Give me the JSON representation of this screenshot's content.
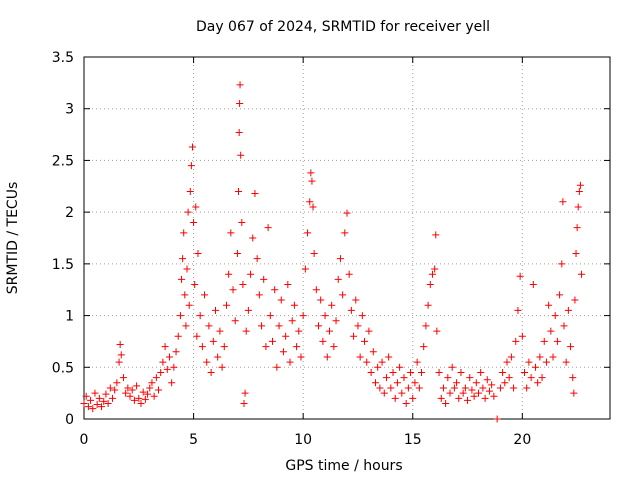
{
  "chart_data": {
    "type": "scatter",
    "title": "Day 067 of 2024, SRMTID for receiver yell",
    "xlabel": "GPS time / hours",
    "ylabel": "SRMTID / TECUs",
    "xlim": [
      0,
      24
    ],
    "ylim": [
      0,
      3.5
    ],
    "x_ticks": [
      0,
      5,
      10,
      15,
      20
    ],
    "x_tick_labels": [
      "0",
      "5",
      "10",
      "15",
      "20"
    ],
    "y_ticks": [
      0,
      0.5,
      1,
      1.5,
      2,
      2.5,
      3,
      3.5
    ],
    "y_tick_labels": [
      "0",
      "0.5",
      "1",
      "1.5",
      "2",
      "2.5",
      "3",
      "3.5"
    ],
    "grid": true,
    "marker": "+",
    "color": "#ff0000",
    "series": [
      {
        "name": "SRMTID",
        "points": [
          [
            0.0,
            0.15
          ],
          [
            0.1,
            0.22
          ],
          [
            0.2,
            0.12
          ],
          [
            0.3,
            0.18
          ],
          [
            0.4,
            0.1
          ],
          [
            0.5,
            0.25
          ],
          [
            0.6,
            0.14
          ],
          [
            0.7,
            0.2
          ],
          [
            0.8,
            0.12
          ],
          [
            0.9,
            0.17
          ],
          [
            1.0,
            0.24
          ],
          [
            1.1,
            0.15
          ],
          [
            1.2,
            0.3
          ],
          [
            1.3,
            0.2
          ],
          [
            1.4,
            0.28
          ],
          [
            1.5,
            0.35
          ],
          [
            1.6,
            0.55
          ],
          [
            1.65,
            0.72
          ],
          [
            1.7,
            0.62
          ],
          [
            1.8,
            0.4
          ],
          [
            1.9,
            0.25
          ],
          [
            2.0,
            0.3
          ],
          [
            2.1,
            0.22
          ],
          [
            2.2,
            0.28
          ],
          [
            2.3,
            0.18
          ],
          [
            2.4,
            0.32
          ],
          [
            2.5,
            0.2
          ],
          [
            2.6,
            0.15
          ],
          [
            2.7,
            0.26
          ],
          [
            2.8,
            0.19
          ],
          [
            2.9,
            0.24
          ],
          [
            3.0,
            0.3
          ],
          [
            3.1,
            0.35
          ],
          [
            3.2,
            0.22
          ],
          [
            3.3,
            0.4
          ],
          [
            3.4,
            0.28
          ],
          [
            3.5,
            0.45
          ],
          [
            3.6,
            0.55
          ],
          [
            3.7,
            0.7
          ],
          [
            3.8,
            0.48
          ],
          [
            3.9,
            0.6
          ],
          [
            4.0,
            0.35
          ],
          [
            4.1,
            0.5
          ],
          [
            4.2,
            0.65
          ],
          [
            4.3,
            0.8
          ],
          [
            4.4,
            1.0
          ],
          [
            4.45,
            1.35
          ],
          [
            4.5,
            1.55
          ],
          [
            4.55,
            1.8
          ],
          [
            4.6,
            1.2
          ],
          [
            4.65,
            0.9
          ],
          [
            4.7,
            1.45
          ],
          [
            4.75,
            2.0
          ],
          [
            4.8,
            1.1
          ],
          [
            4.85,
            2.2
          ],
          [
            4.9,
            2.45
          ],
          [
            4.95,
            2.63
          ],
          [
            5.0,
            1.9
          ],
          [
            5.05,
            1.3
          ],
          [
            5.1,
            2.05
          ],
          [
            5.15,
            0.8
          ],
          [
            5.2,
            1.6
          ],
          [
            5.3,
            1.0
          ],
          [
            5.4,
            0.7
          ],
          [
            5.5,
            1.2
          ],
          [
            5.6,
            0.55
          ],
          [
            5.7,
            0.9
          ],
          [
            5.8,
            0.45
          ],
          [
            5.9,
            0.75
          ],
          [
            6.0,
            1.05
          ],
          [
            6.1,
            0.6
          ],
          [
            6.2,
            0.85
          ],
          [
            6.3,
            0.5
          ],
          [
            6.4,
            0.7
          ],
          [
            6.5,
            1.1
          ],
          [
            6.6,
            1.4
          ],
          [
            6.7,
            1.8
          ],
          [
            6.8,
            1.25
          ],
          [
            6.9,
            0.95
          ],
          [
            7.0,
            1.6
          ],
          [
            7.05,
            2.2
          ],
          [
            7.08,
            2.77
          ],
          [
            7.1,
            3.05
          ],
          [
            7.12,
            3.23
          ],
          [
            7.15,
            2.55
          ],
          [
            7.2,
            1.9
          ],
          [
            7.25,
            1.3
          ],
          [
            7.3,
            0.15
          ],
          [
            7.35,
            0.25
          ],
          [
            7.4,
            0.85
          ],
          [
            7.5,
            1.05
          ],
          [
            7.6,
            1.4
          ],
          [
            7.7,
            1.75
          ],
          [
            7.8,
            2.18
          ],
          [
            7.9,
            1.55
          ],
          [
            8.0,
            1.2
          ],
          [
            8.1,
            0.9
          ],
          [
            8.2,
            1.35
          ],
          [
            8.3,
            0.7
          ],
          [
            8.4,
            1.85
          ],
          [
            8.5,
            1.0
          ],
          [
            8.6,
            0.75
          ],
          [
            8.7,
            1.25
          ],
          [
            8.8,
            0.5
          ],
          [
            8.9,
            0.9
          ],
          [
            9.0,
            1.15
          ],
          [
            9.1,
            0.65
          ],
          [
            9.2,
            0.8
          ],
          [
            9.3,
            1.3
          ],
          [
            9.4,
            0.55
          ],
          [
            9.5,
            0.95
          ],
          [
            9.6,
            1.1
          ],
          [
            9.7,
            0.7
          ],
          [
            9.8,
            0.85
          ],
          [
            9.9,
            0.6
          ],
          [
            10.0,
            1.0
          ],
          [
            10.1,
            1.45
          ],
          [
            10.2,
            1.8
          ],
          [
            10.3,
            2.1
          ],
          [
            10.35,
            2.38
          ],
          [
            10.4,
            2.3
          ],
          [
            10.45,
            2.05
          ],
          [
            10.5,
            1.6
          ],
          [
            10.6,
            1.25
          ],
          [
            10.7,
            0.9
          ],
          [
            10.8,
            1.15
          ],
          [
            10.9,
            0.75
          ],
          [
            11.0,
            1.0
          ],
          [
            11.1,
            0.6
          ],
          [
            11.2,
            0.85
          ],
          [
            11.3,
            1.1
          ],
          [
            11.4,
            0.7
          ],
          [
            11.5,
            0.95
          ],
          [
            11.6,
            1.35
          ],
          [
            11.7,
            1.55
          ],
          [
            11.8,
            1.2
          ],
          [
            11.9,
            1.8
          ],
          [
            12.0,
            1.99
          ],
          [
            12.1,
            1.4
          ],
          [
            12.2,
            1.05
          ],
          [
            12.3,
            0.8
          ],
          [
            12.4,
            1.15
          ],
          [
            12.5,
            0.9
          ],
          [
            12.6,
            0.6
          ],
          [
            12.7,
            1.0
          ],
          [
            12.8,
            0.75
          ],
          [
            12.9,
            0.55
          ],
          [
            13.0,
            0.85
          ],
          [
            13.1,
            0.45
          ],
          [
            13.2,
            0.65
          ],
          [
            13.3,
            0.35
          ],
          [
            13.4,
            0.5
          ],
          [
            13.5,
            0.3
          ],
          [
            13.6,
            0.55
          ],
          [
            13.7,
            0.25
          ],
          [
            13.8,
            0.4
          ],
          [
            13.9,
            0.6
          ],
          [
            14.0,
            0.3
          ],
          [
            14.1,
            0.45
          ],
          [
            14.2,
            0.2
          ],
          [
            14.3,
            0.35
          ],
          [
            14.4,
            0.5
          ],
          [
            14.5,
            0.25
          ],
          [
            14.6,
            0.4
          ],
          [
            14.7,
            0.15
          ],
          [
            14.8,
            0.3
          ],
          [
            14.9,
            0.45
          ],
          [
            15.0,
            0.2
          ],
          [
            15.1,
            0.35
          ],
          [
            15.2,
            0.55
          ],
          [
            15.3,
            0.3
          ],
          [
            15.4,
            0.45
          ],
          [
            15.5,
            0.7
          ],
          [
            15.6,
            0.9
          ],
          [
            15.7,
            1.1
          ],
          [
            15.8,
            1.3
          ],
          [
            15.9,
            1.4
          ],
          [
            16.0,
            1.45
          ],
          [
            16.05,
            1.78
          ],
          [
            16.1,
            0.85
          ],
          [
            16.2,
            0.45
          ],
          [
            16.3,
            0.2
          ],
          [
            16.4,
            0.3
          ],
          [
            16.5,
            0.15
          ],
          [
            16.6,
            0.4
          ],
          [
            16.7,
            0.25
          ],
          [
            16.8,
            0.5
          ],
          [
            16.9,
            0.3
          ],
          [
            17.0,
            0.35
          ],
          [
            17.1,
            0.2
          ],
          [
            17.2,
            0.45
          ],
          [
            17.3,
            0.25
          ],
          [
            17.4,
            0.3
          ],
          [
            17.5,
            0.18
          ],
          [
            17.6,
            0.4
          ],
          [
            17.7,
            0.28
          ],
          [
            17.8,
            0.22
          ],
          [
            17.9,
            0.35
          ],
          [
            18.0,
            0.25
          ],
          [
            18.1,
            0.45
          ],
          [
            18.2,
            0.3
          ],
          [
            18.3,
            0.2
          ],
          [
            18.4,
            0.38
          ],
          [
            18.5,
            0.27
          ],
          [
            18.6,
            0.33
          ],
          [
            18.7,
            0.22
          ],
          [
            18.85,
            0.0
          ],
          [
            19.0,
            0.3
          ],
          [
            19.1,
            0.45
          ],
          [
            19.2,
            0.35
          ],
          [
            19.3,
            0.55
          ],
          [
            19.4,
            0.4
          ],
          [
            19.5,
            0.6
          ],
          [
            19.6,
            0.3
          ],
          [
            19.7,
            0.75
          ],
          [
            19.8,
            1.05
          ],
          [
            19.9,
            1.38
          ],
          [
            20.0,
            0.8
          ],
          [
            20.1,
            0.45
          ],
          [
            20.2,
            0.3
          ],
          [
            20.3,
            0.55
          ],
          [
            20.4,
            0.4
          ],
          [
            20.5,
            1.3
          ],
          [
            20.6,
            0.5
          ],
          [
            20.7,
            0.35
          ],
          [
            20.8,
            0.6
          ],
          [
            20.9,
            0.4
          ],
          [
            21.0,
            0.75
          ],
          [
            21.1,
            0.55
          ],
          [
            21.2,
            1.1
          ],
          [
            21.3,
            0.85
          ],
          [
            21.4,
            0.6
          ],
          [
            21.5,
            1.0
          ],
          [
            21.6,
            0.75
          ],
          [
            21.7,
            1.2
          ],
          [
            21.8,
            1.5
          ],
          [
            21.85,
            2.1
          ],
          [
            21.9,
            0.9
          ],
          [
            22.0,
            0.55
          ],
          [
            22.1,
            1.05
          ],
          [
            22.2,
            0.7
          ],
          [
            22.3,
            0.4
          ],
          [
            22.35,
            0.25
          ],
          [
            22.4,
            1.15
          ],
          [
            22.45,
            1.6
          ],
          [
            22.5,
            1.85
          ],
          [
            22.55,
            2.05
          ],
          [
            22.6,
            2.2
          ],
          [
            22.65,
            2.26
          ],
          [
            22.7,
            1.4
          ]
        ]
      }
    ]
  }
}
